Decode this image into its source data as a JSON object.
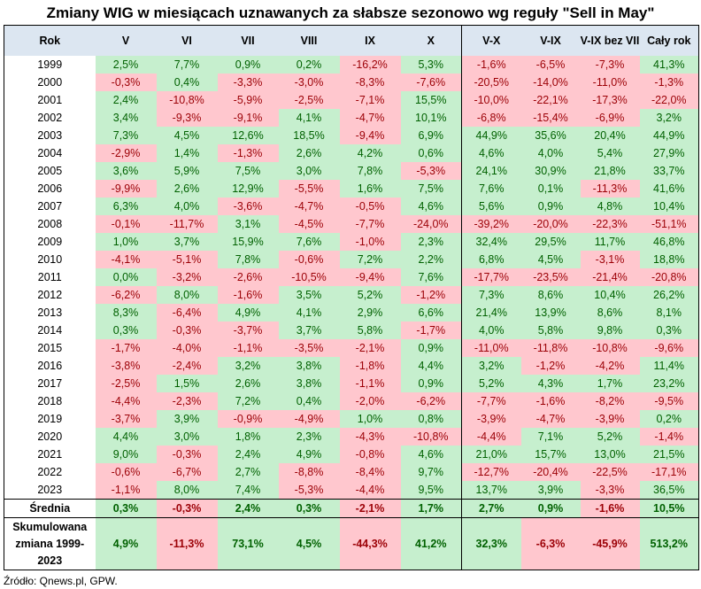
{
  "title": "Zmiany WIG w miesiącach uznawanych za słabsze sezonowo wg reguły \"Sell in May\"",
  "columns": [
    "Rok",
    "V",
    "VI",
    "VII",
    "VIII",
    "IX",
    "X",
    "V-X",
    "V-IX",
    "V-IX bez VII",
    "Cały rok"
  ],
  "colors": {
    "positive_bg": "#c6efce",
    "positive_text": "#006100",
    "negative_bg": "#ffc7ce",
    "negative_text": "#9c0006",
    "header_bg": "#dce6f1"
  },
  "rows": [
    {
      "year": "1999",
      "values": [
        "2,5%",
        "7,7%",
        "0,9%",
        "0,2%",
        "-16,2%",
        "5,3%",
        "-1,6%",
        "-6,5%",
        "-7,3%",
        "41,3%"
      ]
    },
    {
      "year": "2000",
      "values": [
        "-0,3%",
        "0,4%",
        "-3,3%",
        "-3,0%",
        "-8,3%",
        "-7,6%",
        "-20,5%",
        "-14,0%",
        "-11,0%",
        "-1,3%"
      ]
    },
    {
      "year": "2001",
      "values": [
        "2,4%",
        "-10,8%",
        "-5,9%",
        "-2,5%",
        "-7,1%",
        "15,5%",
        "-10,0%",
        "-22,1%",
        "-17,3%",
        "-22,0%"
      ]
    },
    {
      "year": "2002",
      "values": [
        "3,4%",
        "-9,3%",
        "-9,1%",
        "4,1%",
        "-4,7%",
        "10,1%",
        "-6,8%",
        "-15,4%",
        "-6,9%",
        "3,2%"
      ]
    },
    {
      "year": "2003",
      "values": [
        "7,3%",
        "4,5%",
        "12,6%",
        "18,5%",
        "-9,4%",
        "6,9%",
        "44,9%",
        "35,6%",
        "20,4%",
        "44,9%"
      ]
    },
    {
      "year": "2004",
      "values": [
        "-2,9%",
        "1,4%",
        "-1,3%",
        "2,6%",
        "4,2%",
        "0,6%",
        "4,6%",
        "4,0%",
        "5,4%",
        "27,9%"
      ]
    },
    {
      "year": "2005",
      "values": [
        "3,6%",
        "5,9%",
        "7,5%",
        "3,0%",
        "7,8%",
        "-5,3%",
        "24,1%",
        "30,9%",
        "21,8%",
        "33,7%"
      ]
    },
    {
      "year": "2006",
      "values": [
        "-9,9%",
        "2,6%",
        "12,9%",
        "-5,5%",
        "1,6%",
        "7,5%",
        "7,6%",
        "0,1%",
        "-11,3%",
        "41,6%"
      ]
    },
    {
      "year": "2007",
      "values": [
        "6,3%",
        "4,0%",
        "-3,6%",
        "-4,7%",
        "-0,5%",
        "4,6%",
        "5,6%",
        "0,9%",
        "4,8%",
        "10,4%"
      ]
    },
    {
      "year": "2008",
      "values": [
        "-0,1%",
        "-11,7%",
        "3,1%",
        "-4,5%",
        "-7,7%",
        "-24,0%",
        "-39,2%",
        "-20,0%",
        "-22,3%",
        "-51,1%"
      ]
    },
    {
      "year": "2009",
      "values": [
        "1,0%",
        "3,7%",
        "15,9%",
        "7,6%",
        "-1,0%",
        "2,3%",
        "32,4%",
        "29,5%",
        "11,7%",
        "46,8%"
      ]
    },
    {
      "year": "2010",
      "values": [
        "-4,1%",
        "-5,1%",
        "7,8%",
        "-0,6%",
        "7,2%",
        "2,2%",
        "6,8%",
        "4,5%",
        "-3,1%",
        "18,8%"
      ]
    },
    {
      "year": "2011",
      "values": [
        "0,0%",
        "-3,2%",
        "-2,6%",
        "-10,5%",
        "-9,4%",
        "7,6%",
        "-17,7%",
        "-23,5%",
        "-21,4%",
        "-20,8%"
      ]
    },
    {
      "year": "2012",
      "values": [
        "-6,2%",
        "8,0%",
        "-1,6%",
        "3,5%",
        "5,2%",
        "-1,2%",
        "7,3%",
        "8,6%",
        "10,4%",
        "26,2%"
      ]
    },
    {
      "year": "2013",
      "values": [
        "8,3%",
        "-6,4%",
        "4,9%",
        "4,1%",
        "2,9%",
        "6,6%",
        "21,4%",
        "13,9%",
        "8,6%",
        "8,1%"
      ]
    },
    {
      "year": "2014",
      "values": [
        "0,3%",
        "-0,3%",
        "-3,7%",
        "3,7%",
        "5,8%",
        "-1,7%",
        "4,0%",
        "5,8%",
        "9,8%",
        "0,3%"
      ]
    },
    {
      "year": "2015",
      "values": [
        "-1,7%",
        "-4,0%",
        "-1,1%",
        "-3,5%",
        "-2,1%",
        "0,9%",
        "-11,0%",
        "-11,8%",
        "-10,8%",
        "-9,6%"
      ]
    },
    {
      "year": "2016",
      "values": [
        "-3,8%",
        "-2,4%",
        "3,2%",
        "3,8%",
        "-1,8%",
        "4,4%",
        "3,2%",
        "-1,2%",
        "-4,2%",
        "11,4%"
      ]
    },
    {
      "year": "2017",
      "values": [
        "-2,5%",
        "1,5%",
        "2,6%",
        "3,8%",
        "-1,1%",
        "0,9%",
        "5,2%",
        "4,3%",
        "1,7%",
        "23,2%"
      ]
    },
    {
      "year": "2018",
      "values": [
        "-4,4%",
        "-2,3%",
        "7,2%",
        "0,4%",
        "-2,0%",
        "-6,2%",
        "-7,7%",
        "-1,6%",
        "-8,2%",
        "-9,5%"
      ]
    },
    {
      "year": "2019",
      "values": [
        "-3,7%",
        "3,9%",
        "-0,9%",
        "-4,9%",
        "1,0%",
        "0,8%",
        "-3,9%",
        "-4,7%",
        "-3,9%",
        "0,2%"
      ]
    },
    {
      "year": "2020",
      "values": [
        "4,4%",
        "3,0%",
        "1,8%",
        "2,3%",
        "-4,3%",
        "-10,8%",
        "-4,4%",
        "7,1%",
        "5,2%",
        "-1,4%"
      ]
    },
    {
      "year": "2021",
      "values": [
        "9,0%",
        "-0,3%",
        "2,4%",
        "4,9%",
        "-0,8%",
        "4,6%",
        "21,0%",
        "15,7%",
        "13,0%",
        "21,5%"
      ]
    },
    {
      "year": "2022",
      "values": [
        "-0,6%",
        "-6,7%",
        "2,7%",
        "-8,8%",
        "-8,4%",
        "9,7%",
        "-12,7%",
        "-20,4%",
        "-22,5%",
        "-17,1%"
      ]
    },
    {
      "year": "2023",
      "values": [
        "-1,1%",
        "8,0%",
        "7,4%",
        "-5,3%",
        "-4,4%",
        "9,5%",
        "13,7%",
        "3,9%",
        "-3,3%",
        "36,5%"
      ]
    }
  ],
  "average": {
    "label": "Średnia",
    "values": [
      "0,3%",
      "-0,3%",
      "2,4%",
      "0,3%",
      "-2,1%",
      "1,7%",
      "2,7%",
      "0,9%",
      "-1,6%",
      "10,5%"
    ]
  },
  "cumulative": {
    "label": "Skumulowana zmiana 1999-2023",
    "values": [
      "4,9%",
      "-11,3%",
      "73,1%",
      "4,5%",
      "-44,3%",
      "41,2%",
      "32,3%",
      "-6,3%",
      "-45,9%",
      "513,2%"
    ]
  },
  "source": "Źródło: Qnews.pl, GPW."
}
